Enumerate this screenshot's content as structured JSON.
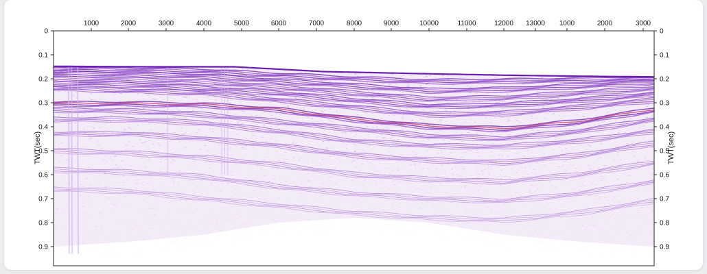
{
  "chart_data": {
    "type": "heatmap",
    "title": "",
    "ylabel_left": "TWT(sec)",
    "ylabel_right": "TWT(sec)",
    "x_tick_labels": [
      "1000",
      "2000",
      "3000",
      "4000",
      "5000",
      "6000",
      "7000",
      "8000",
      "9000",
      "10000",
      "11000",
      "12000",
      "13000",
      "1000",
      "2000",
      "3000"
    ],
    "y_ticks": [
      0,
      0.1,
      0.2,
      0.3,
      0.4,
      0.5,
      0.6,
      0.7,
      0.8,
      0.9
    ],
    "y_tick_labels": [
      "0",
      "0.1",
      "0.2",
      "0.3",
      "0.4",
      "0.5",
      "0.6",
      "0.7",
      "0.8",
      "0.9"
    ],
    "ylim": [
      0,
      0.98
    ],
    "colors": {
      "reflector_dark": "#6a1fb0",
      "reflector_mid": "#9b4fcf",
      "reflector_light": "#d2b0ea",
      "hot_red": "#c8386a",
      "frame": "#222222"
    },
    "seafloor_twt": [
      {
        "trace": 0.0,
        "twt": 0.148
      },
      {
        "trace": 0.15,
        "twt": 0.15
      },
      {
        "trace": 0.3,
        "twt": 0.15
      },
      {
        "trace": 0.36,
        "twt": 0.158
      },
      {
        "trace": 0.45,
        "twt": 0.17
      },
      {
        "trace": 0.6,
        "twt": 0.178
      },
      {
        "trace": 0.75,
        "twt": 0.185
      },
      {
        "trace": 0.9,
        "twt": 0.19
      },
      {
        "trace": 1.0,
        "twt": 0.192
      }
    ],
    "reflectors": [
      {
        "strength": 0.9,
        "twt": [
          0.16,
          0.162,
          0.168,
          0.185,
          0.2,
          0.212,
          0.21,
          0.205,
          0.2
        ]
      },
      {
        "strength": 0.85,
        "twt": [
          0.18,
          0.182,
          0.19,
          0.21,
          0.23,
          0.25,
          0.245,
          0.23,
          0.215
        ]
      },
      {
        "strength": 0.75,
        "twt": [
          0.2,
          0.205,
          0.215,
          0.235,
          0.26,
          0.285,
          0.28,
          0.26,
          0.24
        ]
      },
      {
        "strength": 0.8,
        "twt": [
          0.22,
          0.225,
          0.24,
          0.26,
          0.29,
          0.315,
          0.31,
          0.29,
          0.265
        ]
      },
      {
        "strength": 0.7,
        "twt": [
          0.24,
          0.25,
          0.26,
          0.29,
          0.32,
          0.35,
          0.345,
          0.32,
          0.29
        ]
      },
      {
        "strength": 0.95,
        "twt": [
          0.305,
          0.305,
          0.31,
          0.33,
          0.37,
          0.4,
          0.41,
          0.38,
          0.33
        ]
      },
      {
        "strength": 0.6,
        "twt": [
          0.33,
          0.335,
          0.35,
          0.38,
          0.41,
          0.44,
          0.45,
          0.42,
          0.37
        ]
      },
      {
        "strength": 0.5,
        "twt": [
          0.37,
          0.37,
          0.385,
          0.42,
          0.46,
          0.48,
          0.485,
          0.46,
          0.42
        ]
      },
      {
        "strength": 0.45,
        "twt": [
          0.43,
          0.43,
          0.45,
          0.48,
          0.52,
          0.54,
          0.55,
          0.52,
          0.47
        ]
      },
      {
        "strength": 0.35,
        "twt": [
          0.5,
          0.51,
          0.53,
          0.56,
          0.6,
          0.62,
          0.63,
          0.6,
          0.55
        ]
      },
      {
        "strength": 0.3,
        "twt": [
          0.58,
          0.59,
          0.61,
          0.65,
          0.68,
          0.7,
          0.71,
          0.68,
          0.63
        ]
      },
      {
        "strength": 0.22,
        "twt": [
          0.66,
          0.67,
          0.7,
          0.73,
          0.76,
          0.78,
          0.79,
          0.76,
          0.71
        ]
      }
    ],
    "signal_fade_twt": [
      0.9,
      0.88,
      0.85,
      0.8,
      0.78,
      0.8,
      0.85,
      0.88,
      0.9
    ]
  }
}
